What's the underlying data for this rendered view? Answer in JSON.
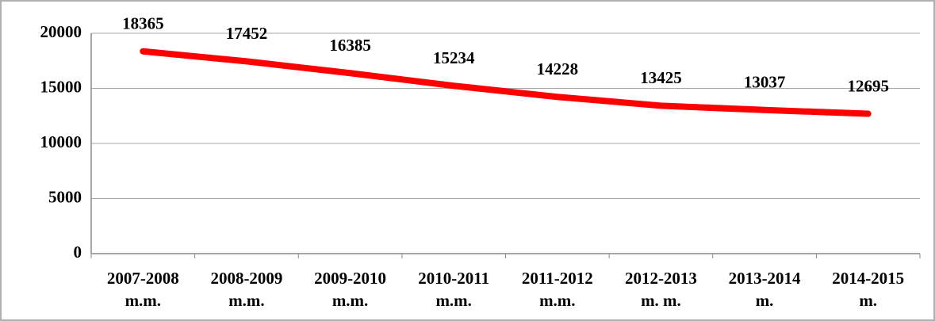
{
  "chart_data": {
    "type": "line",
    "categories": [
      "2007-2008 m.m.",
      "2008-2009 m.m.",
      "2009-2010 m.m.",
      "2010-2011 m.m.",
      "2011-2012 m.m.",
      "2012-2013 m. m.",
      "2013-2014 m.",
      "2014-2015 m."
    ],
    "series": [
      {
        "color": "#ff0000",
        "values": [
          18365,
          17452,
          16385,
          15234,
          14228,
          13425,
          13037,
          12695
        ]
      }
    ],
    "ylim": [
      0,
      20000
    ],
    "yticks": [
      0,
      5000,
      10000,
      15000,
      20000
    ],
    "grid": true,
    "data_labels": true
  }
}
